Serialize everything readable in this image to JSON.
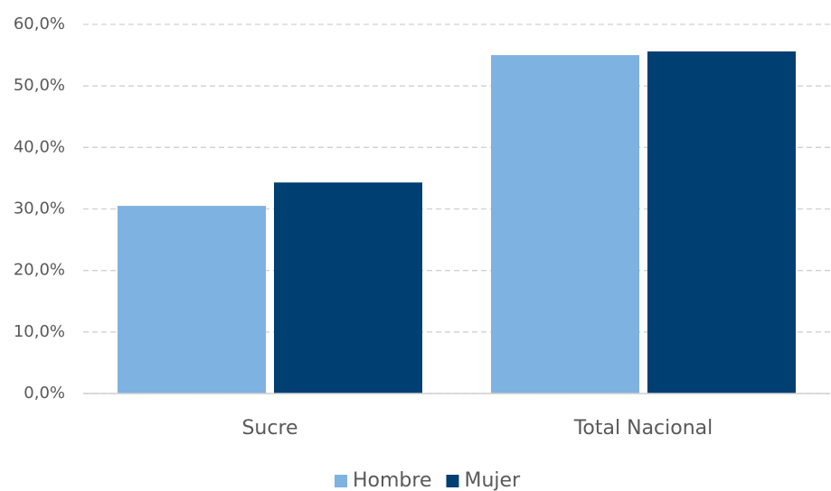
{
  "chart_data": {
    "type": "bar",
    "categories": [
      "Sucre",
      "Total Nacional"
    ],
    "series": [
      {
        "name": "Hombre",
        "color": "#7eb2e0",
        "values": [
          30.5,
          55.0
        ]
      },
      {
        "name": "Mujer",
        "color": "#003f72",
        "values": [
          34.3,
          55.6
        ]
      }
    ],
    "ylim": [
      0,
      60
    ],
    "yticks": [
      {
        "value": 0,
        "label": "0,0%"
      },
      {
        "value": 10,
        "label": "10,0%"
      },
      {
        "value": 20,
        "label": "20,0%"
      },
      {
        "value": 30,
        "label": "30,0%"
      },
      {
        "value": 40,
        "label": "40,0%"
      },
      {
        "value": 50,
        "label": "50,0%"
      },
      {
        "value": 60,
        "label": "60,0%"
      }
    ],
    "grid": true,
    "legend": "bottom"
  }
}
